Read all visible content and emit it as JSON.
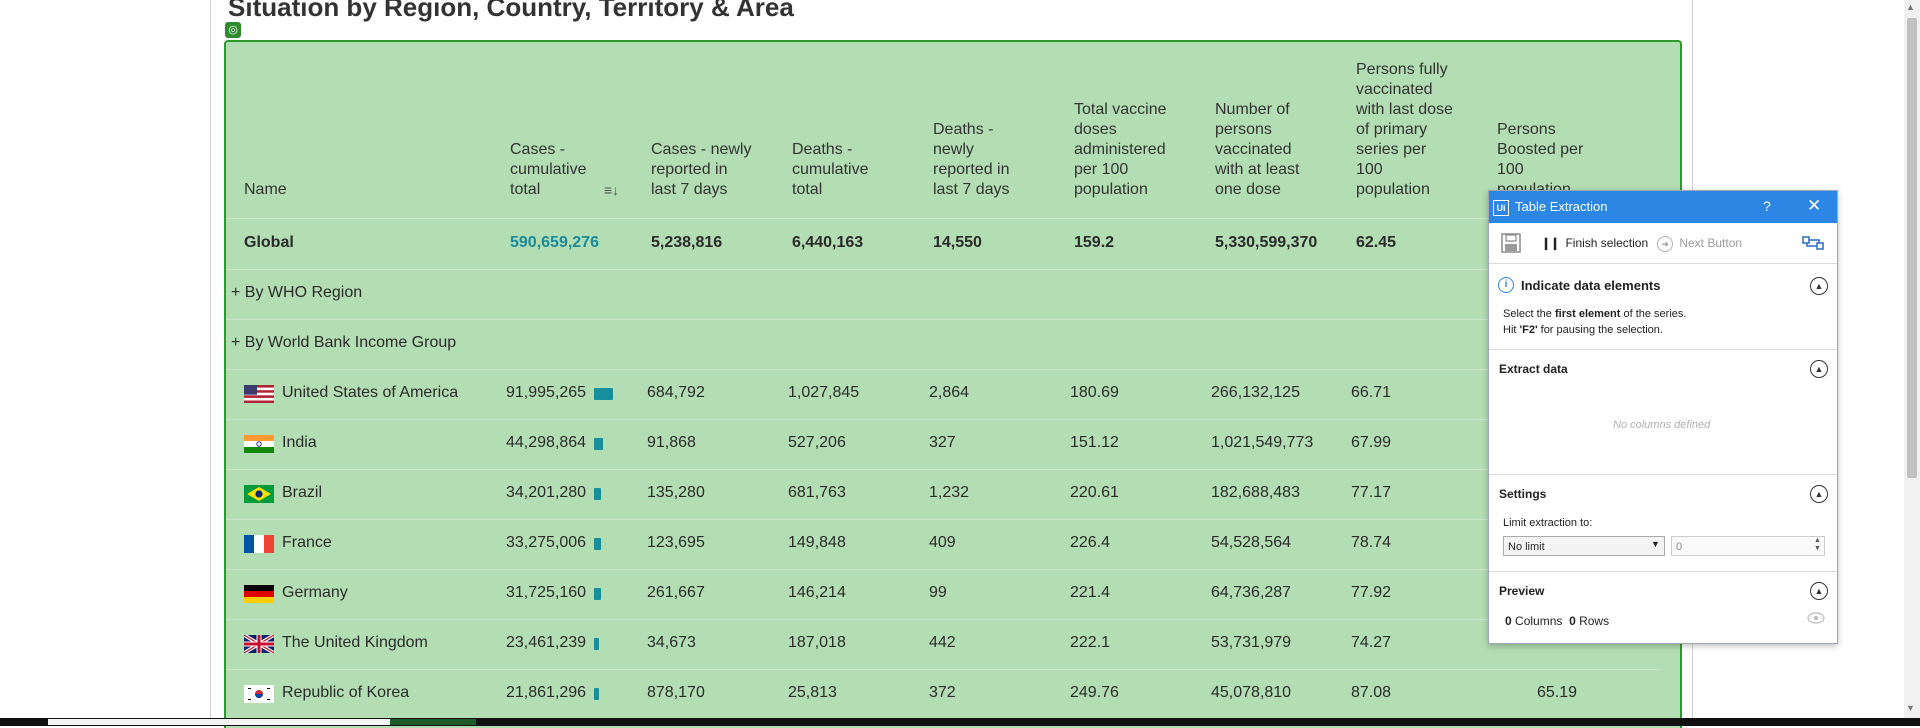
{
  "page": {
    "title": "Situation by Region, Country, Territory & Area",
    "selection_marker": "◎"
  },
  "table": {
    "headers": [
      [
        "Name"
      ],
      [
        "Cases -",
        "cumulative",
        "total"
      ],
      [
        "Cases - newly",
        "reported in",
        "last 7 days"
      ],
      [
        "Deaths -",
        "cumulative",
        "total"
      ],
      [
        "Deaths -",
        "newly",
        "reported in",
        "last 7 days"
      ],
      [
        "Total vaccine",
        "doses",
        "administered",
        "per 100",
        "population"
      ],
      [
        "Number of",
        "persons",
        "vaccinated",
        "with at least",
        "one dose"
      ],
      [
        "Persons fully",
        "vaccinated",
        "with last dose",
        "of primary",
        "series per",
        "100",
        "population"
      ],
      [
        "Persons",
        "Boosted per",
        "100",
        "population"
      ]
    ],
    "sort_icon": "≡↓",
    "global_row": {
      "name": "Global",
      "values": [
        "590,659,276",
        "5,238,816",
        "6,440,163",
        "14,550",
        "159.2",
        "5,330,599,370",
        "62.45"
      ]
    },
    "groups": [
      "+ By WHO Region",
      "+ By World Bank Income Group"
    ],
    "rows": [
      {
        "flag": "usa",
        "name": "United States of America",
        "bar": 0.215,
        "values": [
          "91,995,265",
          "684,792",
          "1,027,845",
          "2,864",
          "180.69",
          "266,132,125",
          "66.71",
          ""
        ]
      },
      {
        "flag": "india",
        "name": "India",
        "bar": 0.102,
        "values": [
          "44,298,864",
          "91,868",
          "527,206",
          "327",
          "151.12",
          "1,021,549,773",
          "67.99",
          ""
        ]
      },
      {
        "flag": "brazil",
        "name": "Brazil",
        "bar": 0.08,
        "values": [
          "34,201,280",
          "135,280",
          "681,763",
          "1,232",
          "220.61",
          "182,688,483",
          "77.17",
          ""
        ]
      },
      {
        "flag": "france",
        "name": "France",
        "bar": 0.078,
        "values": [
          "33,275,006",
          "123,695",
          "149,848",
          "409",
          "226.4",
          "54,528,564",
          "78.74",
          ""
        ]
      },
      {
        "flag": "germany",
        "name": "Germany",
        "bar": 0.074,
        "values": [
          "31,725,160",
          "261,667",
          "146,214",
          "99",
          "221.4",
          "64,736,287",
          "77.92",
          ""
        ]
      },
      {
        "flag": "uk",
        "name": "The United Kingdom",
        "bar": 0.055,
        "values": [
          "23,461,239",
          "34,673",
          "187,018",
          "442",
          "222.1",
          "53,731,979",
          "74.27",
          ""
        ]
      },
      {
        "flag": "korea",
        "name": "Republic of Korea",
        "bar": 0.051,
        "values": [
          "21,861,296",
          "878,170",
          "25,813",
          "372",
          "249.76",
          "45,078,810",
          "87.08",
          "65.19"
        ]
      }
    ]
  },
  "panel": {
    "title": "Table Extraction",
    "help": "?",
    "close": "✕",
    "logo": "Ui",
    "toolbar": {
      "save_icon": "floppy-disk",
      "finish_label": "Finish selection",
      "next_label": "Next Button"
    },
    "indicate": {
      "title": "Indicate data elements",
      "line1_pre": "Select the ",
      "line1_bold": "first element",
      "line1_post": " of the series.",
      "line2_pre": "Hit ",
      "line2_bold": "'F2'",
      "line2_post": " for pausing the selection."
    },
    "extract": {
      "title": "Extract data",
      "empty": "No columns defined"
    },
    "settings": {
      "title": "Settings",
      "limit_label": "Limit extraction to:",
      "limit_value": "No limit",
      "limit_number": "0"
    },
    "preview": {
      "title": "Preview",
      "columns_count": "0",
      "columns_label": "Columns",
      "rows_count": "0",
      "rows_label": "Rows"
    }
  }
}
